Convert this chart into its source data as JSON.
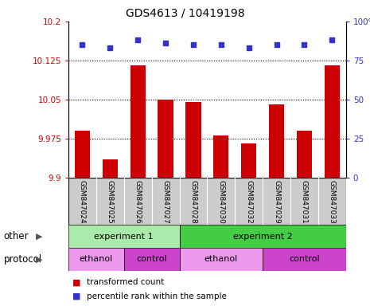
{
  "title": "GDS4613 / 10419198",
  "samples": [
    "GSM847024",
    "GSM847025",
    "GSM847026",
    "GSM847027",
    "GSM847028",
    "GSM847030",
    "GSM847032",
    "GSM847029",
    "GSM847031",
    "GSM847033"
  ],
  "bar_values": [
    9.99,
    9.935,
    10.115,
    10.05,
    10.045,
    9.98,
    9.965,
    10.04,
    9.99,
    10.115
  ],
  "dot_values": [
    85,
    83,
    88,
    86,
    85,
    85,
    83,
    85,
    85,
    88
  ],
  "bar_color": "#cc0000",
  "dot_color": "#3333cc",
  "ylim_left": [
    9.9,
    10.2
  ],
  "ylim_right": [
    0,
    100
  ],
  "yticks_left": [
    9.9,
    9.975,
    10.05,
    10.125,
    10.2
  ],
  "yticks_right": [
    0,
    25,
    50,
    75,
    100
  ],
  "ytick_labels_left": [
    "9.9",
    "9.975",
    "10.05",
    "10.125",
    "10.2"
  ],
  "ytick_labels_right": [
    "0",
    "25",
    "50",
    "75",
    "100%"
  ],
  "hlines": [
    9.975,
    10.05,
    10.125
  ],
  "experiment_groups": [
    {
      "label": "experiment 1",
      "start": 0,
      "end": 4,
      "color": "#aaeaaa"
    },
    {
      "label": "experiment 2",
      "start": 4,
      "end": 10,
      "color": "#44cc44"
    }
  ],
  "protocol_groups": [
    {
      "label": "ethanol",
      "start": 0,
      "end": 2,
      "color": "#ee99ee"
    },
    {
      "label": "control",
      "start": 2,
      "end": 4,
      "color": "#cc44cc"
    },
    {
      "label": "ethanol",
      "start": 4,
      "end": 7,
      "color": "#ee99ee"
    },
    {
      "label": "control",
      "start": 7,
      "end": 10,
      "color": "#cc44cc"
    }
  ],
  "legend_items": [
    {
      "label": "transformed count",
      "color": "#cc0000"
    },
    {
      "label": "percentile rank within the sample",
      "color": "#3333cc"
    }
  ],
  "bar_bottom": 9.9,
  "sample_label_bg": "#cccccc",
  "sample_label_sep_color": "#ffffff",
  "row_border_color": "#000000",
  "row_label_color": "#555555"
}
